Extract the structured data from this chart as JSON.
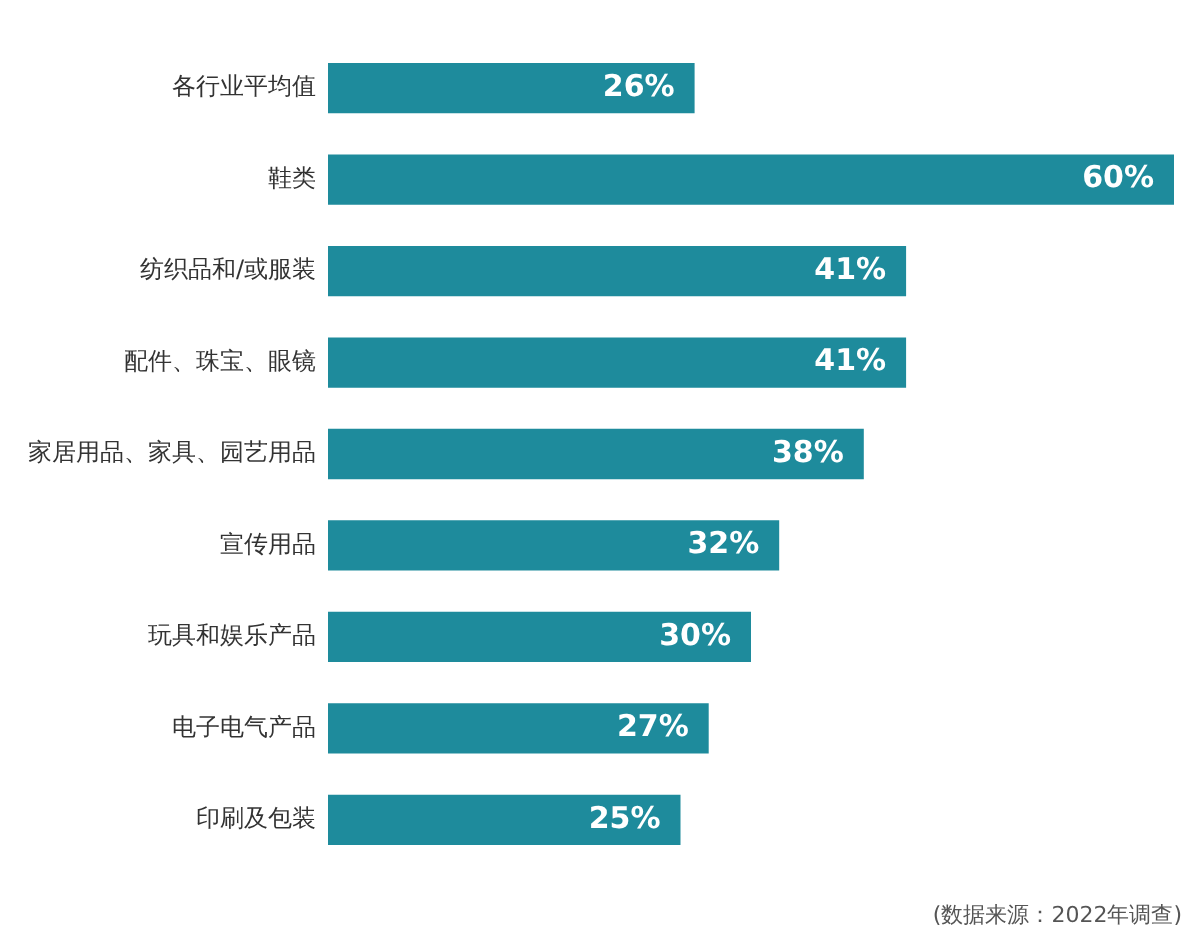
{
  "chart_data": {
    "type": "bar",
    "orientation": "horizontal",
    "categories": [
      "各行业平均值",
      "鞋类",
      "纺织品和/或服装",
      "配件、珠宝、眼镜",
      "家居用品、家具、园艺用品",
      "宣传用品",
      "玩具和娱乐产品",
      "电子电气产品",
      "印刷及包装"
    ],
    "values": [
      26,
      60,
      41,
      41,
      38,
      32,
      30,
      27,
      25
    ],
    "value_labels": [
      "26%",
      "60%",
      "41%",
      "41%",
      "38%",
      "32%",
      "30%",
      "27%",
      "25%"
    ],
    "color": "#1e8b9c",
    "grid": false,
    "legend": false,
    "annotations": [
      "(数据来源：2022年调查)"
    ]
  }
}
